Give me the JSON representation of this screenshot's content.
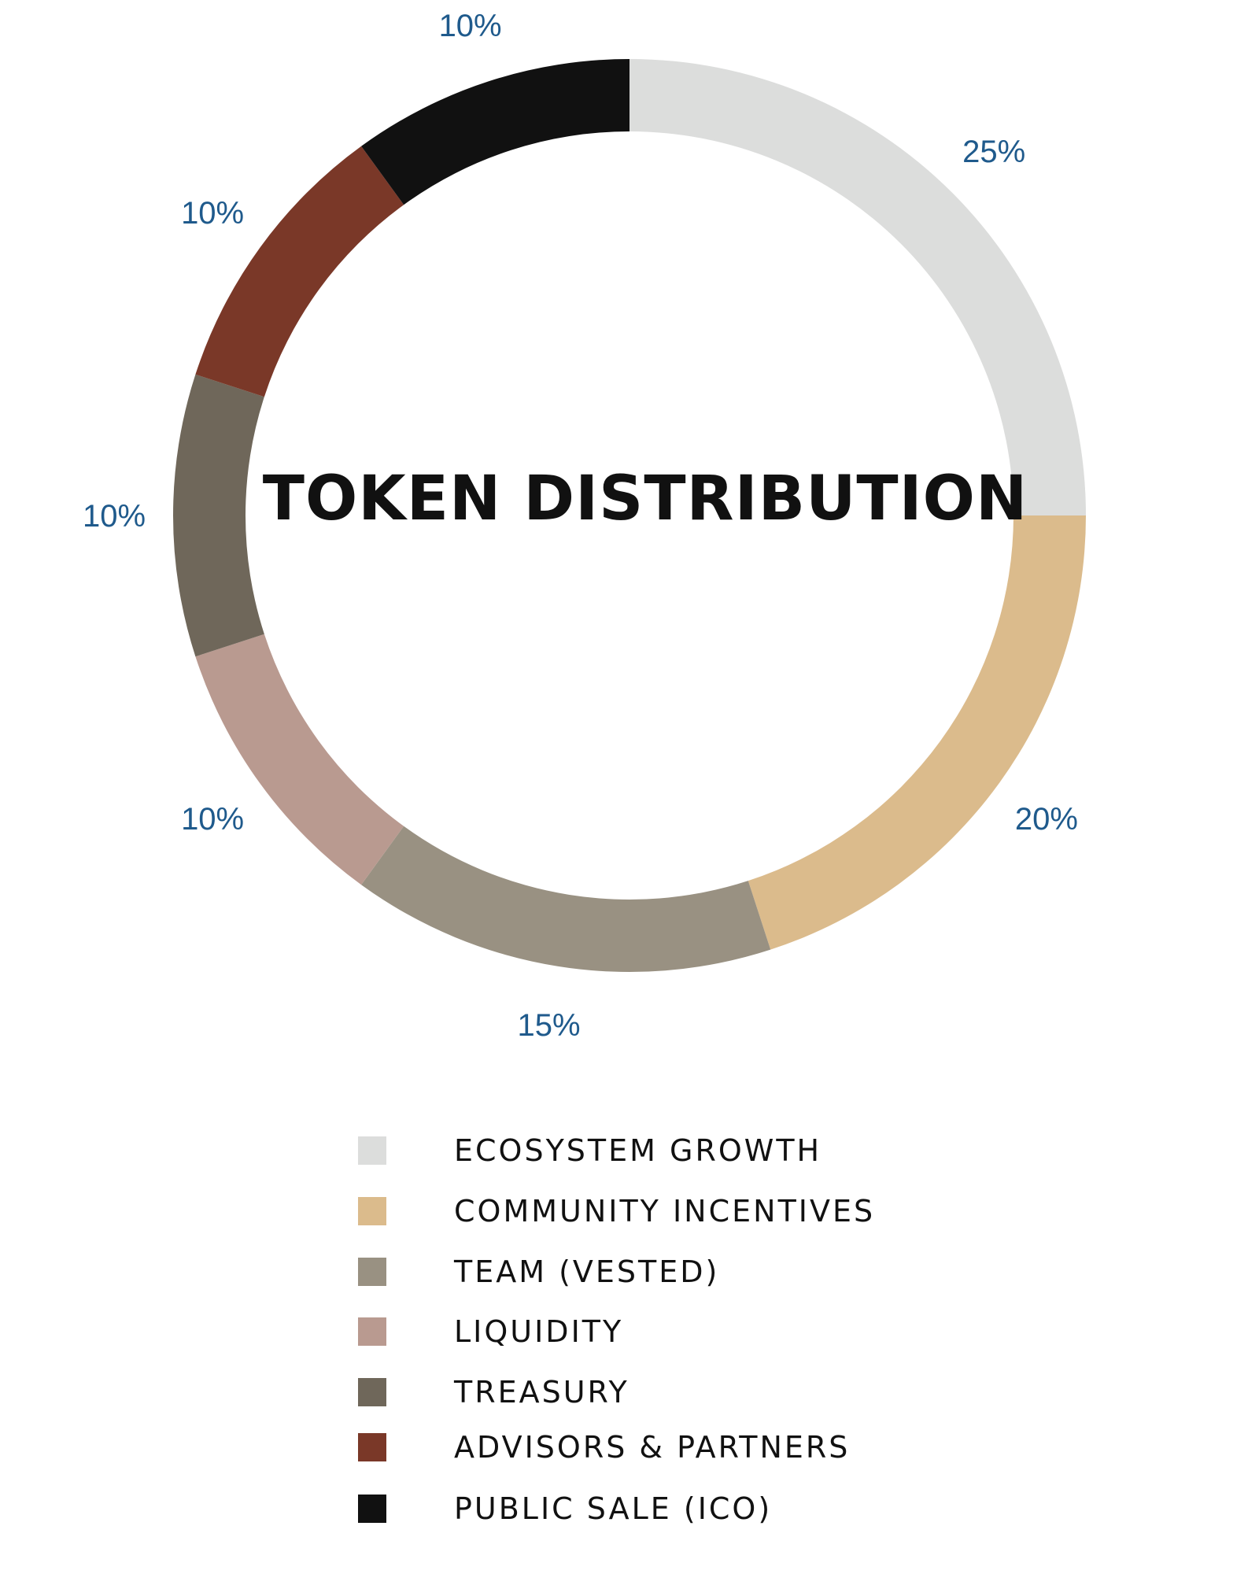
{
  "chart_data": {
    "type": "pie",
    "variant": "donut",
    "title": "TOKEN DISTRIBUTION",
    "start_angle": "12 o'clock",
    "direction": "clockwise",
    "label_color": "#1f5a8c",
    "series": [
      {
        "name": "ECOSYSTEM GROWTH",
        "value": 25,
        "label": "25%",
        "color": "#dcdddc"
      },
      {
        "name": "COMMUNITY INCENTIVES",
        "value": 20,
        "label": "20%",
        "color": "#dbbb8c"
      },
      {
        "name": "TEAM (VESTED)",
        "value": 15,
        "label": "15%",
        "color": "#999182"
      },
      {
        "name": "LIQUIDITY",
        "value": 10,
        "label": "10%",
        "color": "#b99a90"
      },
      {
        "name": "TREASURY",
        "value": 10,
        "label": "10%",
        "color": "#6f675a"
      },
      {
        "name": "ADVISORS & PARTNERS",
        "value": 10,
        "label": "10%",
        "color": "#7a3828"
      },
      {
        "name": "PUBLIC SALE (ICO)",
        "value": 10,
        "label": "10%",
        "color": "#111111"
      }
    ],
    "legend_position": "bottom"
  }
}
